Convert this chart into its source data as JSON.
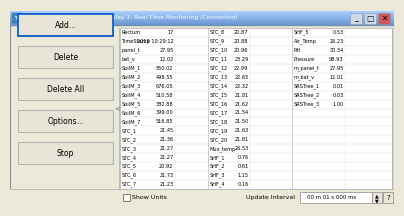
{
  "title": "TZ_fmet_CR23X Numeric Display 1: Real Time Monitoring (Connected)",
  "title_bg": "#c8d0e0",
  "title_color": "#000000",
  "window_bg": "#ece9d8",
  "table_bg": "#ffffff",
  "buttons": [
    "Add...",
    "Delete",
    "Delete All",
    "Options...",
    "Stop"
  ],
  "col1_data": [
    [
      "Rectum",
      "17"
    ],
    [
      "TimeStamp",
      "2019 10:29:12"
    ],
    [
      "panel_t",
      "27.95"
    ],
    [
      "bat_v",
      "12.02"
    ],
    [
      "SoilM_1",
      "550.02"
    ],
    [
      "SoilM_2",
      "498.55"
    ],
    [
      "SoilM_3",
      "676.05"
    ],
    [
      "SoilM_4",
      "510.58"
    ],
    [
      "SoilM_5",
      "382.88"
    ],
    [
      "SoilM_6",
      "399.00"
    ],
    [
      "SoilM_7",
      "516.85"
    ],
    [
      "STC_1",
      "21.45"
    ],
    [
      "STC_2",
      "21.36"
    ],
    [
      "STC_3",
      "21.27"
    ],
    [
      "STC_4",
      "21.27"
    ],
    [
      "STC_5",
      "20.92"
    ],
    [
      "STC_6",
      "21.73"
    ],
    [
      "STC_7",
      "21.23"
    ]
  ],
  "col2_data": [
    [
      "STC_8",
      "20.87"
    ],
    [
      "STC_9",
      "20.88"
    ],
    [
      "STC_10",
      "20.96"
    ],
    [
      "STC_11",
      "23.29"
    ],
    [
      "STC_12",
      "22.99"
    ],
    [
      "STC_13",
      "22.65"
    ],
    [
      "STC_14",
      "22.32"
    ],
    [
      "STC_15",
      "21.81"
    ],
    [
      "STC_16",
      "21.62"
    ],
    [
      "STC_17",
      "21.54"
    ],
    [
      "STC_18",
      "21.50"
    ],
    [
      "STC_19",
      "21.63"
    ],
    [
      "STC_20",
      "21.81"
    ],
    [
      "Mux_temp",
      "26.53"
    ],
    [
      "SHF_1",
      "0.76"
    ],
    [
      "SHF_2",
      "0.61"
    ],
    [
      "SHF_3",
      "1.15"
    ],
    [
      "SHF_4",
      "0.16"
    ]
  ],
  "col3_data": [
    [
      "SHF_5",
      "0.53"
    ],
    [
      "Air_Temp",
      "26.23"
    ],
    [
      "RH",
      "30.34"
    ],
    [
      "Pressure",
      "98.93"
    ],
    [
      "m_panel_t",
      "27.95"
    ],
    [
      "m_bat_v",
      "12.01"
    ],
    [
      "SRSTree_1",
      "0.01"
    ],
    [
      "SRSTree_2",
      "0.03"
    ],
    [
      "SRSTree_3",
      "1.00"
    ],
    [
      "",
      ""
    ],
    [
      "",
      ""
    ],
    [
      "",
      ""
    ],
    [
      "",
      ""
    ],
    [
      "",
      ""
    ],
    [
      "",
      ""
    ],
    [
      "",
      ""
    ],
    [
      "",
      ""
    ],
    [
      "",
      ""
    ]
  ],
  "footer_text": "Show Units",
  "interval_label": "Update Interval",
  "interval_value": "00 m 01 s 000 ms"
}
